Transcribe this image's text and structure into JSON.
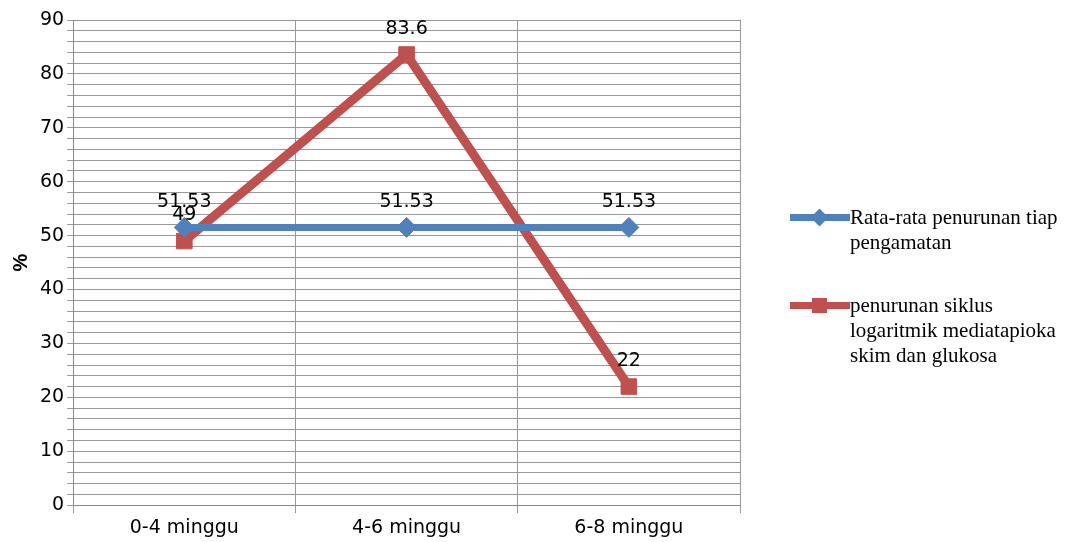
{
  "chart_data": {
    "type": "line",
    "ylabel": "%",
    "categories": [
      "0-4 minggu",
      "4-6 minggu",
      "6-8 minggu"
    ],
    "series": [
      {
        "name": "Rata-rata penurunan tiap pengamatan",
        "color": "#4f81bd",
        "values": [
          51.53,
          51.53,
          51.53
        ],
        "marker": "diamond"
      },
      {
        "name": "penurunan siklus logaritmik mediatapioka skim dan glukosa",
        "color": "#c0504d",
        "values": [
          49,
          83.6,
          22
        ],
        "marker": "square"
      }
    ],
    "ylim": [
      0,
      90
    ],
    "yticks": [
      0,
      {
        "value": 2,
        "label": null
      },
      {
        "value": 4,
        "label": null
      },
      {
        "value": 6,
        "label": null
      },
      {
        "value": 8,
        "label": null
      },
      10,
      {
        "value": 12,
        "label": null
      },
      {
        "value": 14,
        "label": null
      },
      {
        "value": 16,
        "label": null
      },
      {
        "value": 18,
        "label": null
      },
      20,
      {
        "value": 22,
        "label": null
      },
      {
        "value": 24,
        "label": null
      },
      {
        "value": 26,
        "label": null
      },
      {
        "value": 28,
        "label": null
      },
      30,
      {
        "value": 32,
        "label": null
      },
      {
        "value": 34,
        "label": null
      },
      {
        "value": 36,
        "label": null
      },
      {
        "value": 38,
        "label": null
      },
      40,
      {
        "value": 42,
        "label": null
      },
      {
        "value": 44,
        "label": null
      },
      {
        "value": 46,
        "label": null
      },
      {
        "value": 48,
        "label": null
      },
      50,
      {
        "value": 52,
        "label": null
      },
      {
        "value": 54,
        "label": null
      },
      {
        "value": 56,
        "label": null
      },
      {
        "value": 58,
        "label": null
      },
      60,
      {
        "value": 62,
        "label": null
      },
      {
        "value": 64,
        "label": null
      },
      {
        "value": 66,
        "label": null
      },
      {
        "value": 68,
        "label": null
      },
      70,
      {
        "value": 72,
        "label": null
      },
      {
        "value": 74,
        "label": null
      },
      {
        "value": 76,
        "label": null
      },
      {
        "value": 78,
        "label": null
      },
      80,
      {
        "value": 82,
        "label": null
      },
      {
        "value": 84,
        "label": null
      },
      {
        "value": 86,
        "label": null
      },
      {
        "value": 88,
        "label": null
      },
      90
    ],
    "grid": true,
    "legend": "right",
    "data_labels": true,
    "line_style": "solid"
  }
}
